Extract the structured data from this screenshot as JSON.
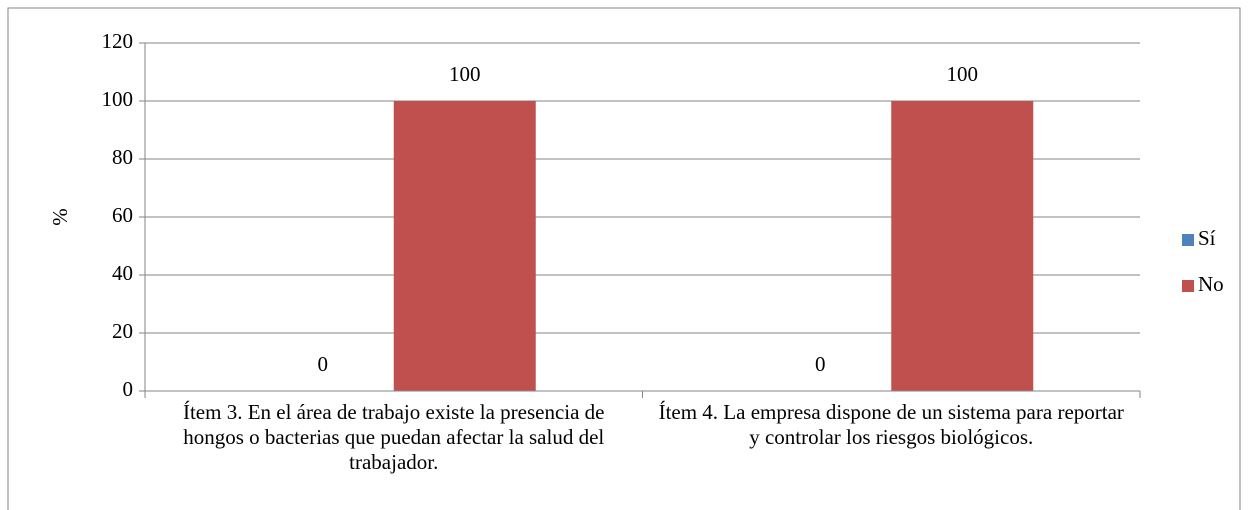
{
  "chart_data": {
    "type": "bar",
    "categories": [
      "Ítem 3. En el área de trabajo existe la presencia de hongos o bacterias que puedan afectar la salud del trabajador.",
      "Ítem 4. La empresa dispone de un sistema para reportar y controlar los riesgos biológicos."
    ],
    "series": [
      {
        "name": "Sí",
        "color": "#4f81bd",
        "values": [
          0,
          0
        ]
      },
      {
        "name": "No",
        "color": "#c0504d",
        "values": [
          100,
          100
        ]
      }
    ],
    "y_label": "%",
    "ylim": [
      0,
      120
    ],
    "yticks": [
      0,
      20,
      40,
      60,
      80,
      100,
      120
    ],
    "grid": true,
    "legend": "right"
  }
}
